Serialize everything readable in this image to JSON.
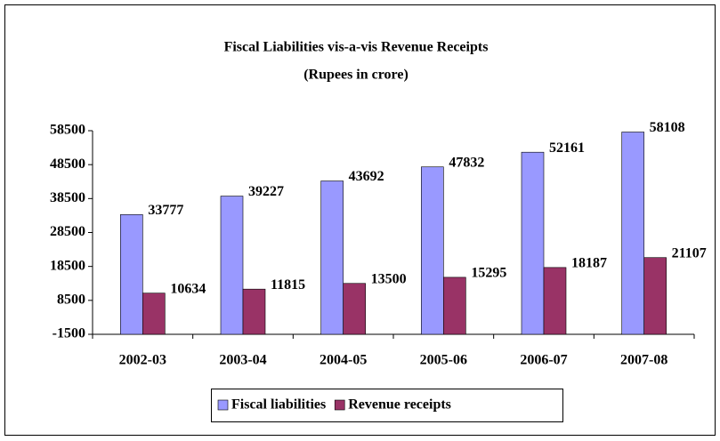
{
  "chart_data": {
    "type": "bar",
    "title": "Fiscal Liabilities vis-a-vis Revenue Receipts",
    "subtitle": "(Rupees in crore)",
    "categories": [
      "2002-03",
      "2003-04",
      "2004-05",
      "2005-06",
      "2006-07",
      "2007-08"
    ],
    "series": [
      {
        "name": "Fiscal liabilities",
        "color": "#9999ff",
        "values": [
          33777,
          39227,
          43692,
          47832,
          52161,
          58108
        ]
      },
      {
        "name": "Revenue receipts",
        "color": "#993366",
        "values": [
          10634,
          11815,
          13500,
          15295,
          18187,
          21107
        ]
      }
    ],
    "ylim": [
      -1500,
      58500
    ],
    "yticks": [
      -1500,
      8500,
      18500,
      28500,
      38500,
      48500,
      58500
    ],
    "legend": "bottom"
  }
}
